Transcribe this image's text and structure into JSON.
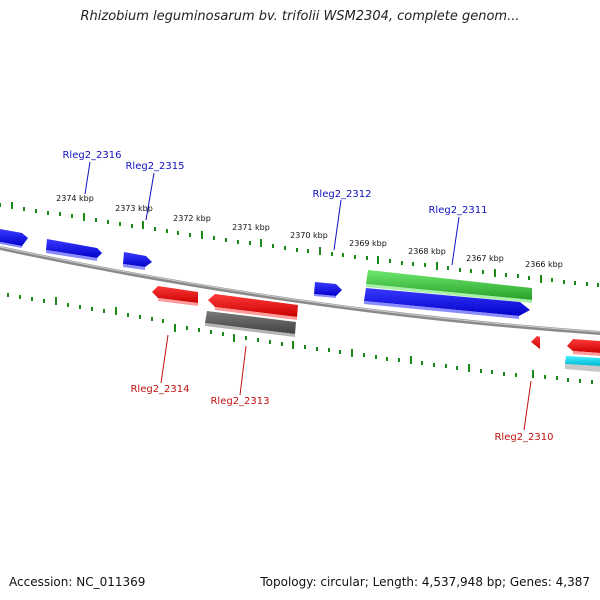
{
  "title": "Rhizobium leguminosarum bv. trifolii WSM2304, complete genom...",
  "footer": {
    "accession": "Accession: NC_011369",
    "summary": "Topology: circular; Length: 4,537,948 bp; Genes: 4,387"
  },
  "colors": {
    "backbone": "#8a8a8a",
    "tick": "#1a8a1a",
    "forward_gene": "#0a0ae6",
    "reverse_gene": "#e60a0a",
    "feature_green": "#3cc83c",
    "feature_gray": "#606060",
    "feature_cyan": "#00d8e8",
    "label_forward": "#1010c0",
    "label_reverse": "#c01010"
  },
  "scale_labels": [
    "2374 kbp",
    "2373 kbp",
    "2372 kbp",
    "2371 kbp",
    "2370 kbp",
    "2369 kbp",
    "2368 kbp",
    "2367 kbp",
    "2366 kbp"
  ],
  "gene_labels": {
    "forward": [
      "Rleg2_2316",
      "Rleg2_2315",
      "Rleg2_2312",
      "Rleg2_2311"
    ],
    "reverse": [
      "Rleg2_2314",
      "Rleg2_2313",
      "Rleg2_2310"
    ]
  }
}
